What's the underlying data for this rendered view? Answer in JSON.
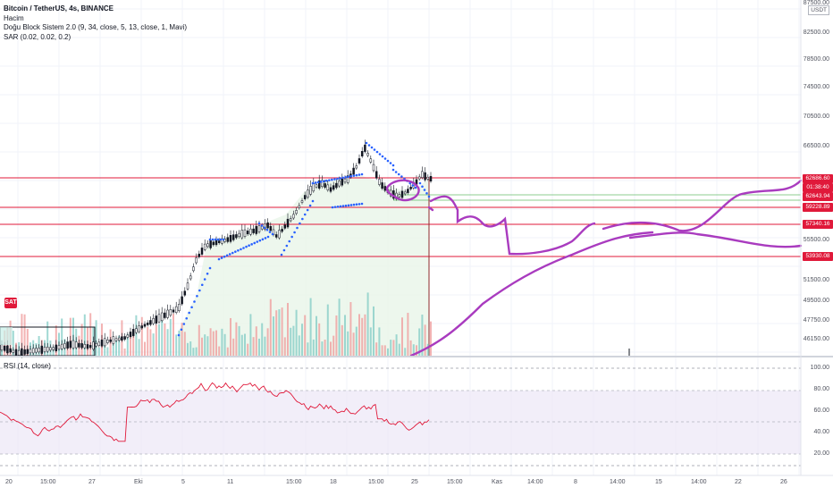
{
  "header": {
    "symbol_line": "Bitcoin / TetherUS, 4s, BINANCE",
    "volume_label": "Hacim",
    "indicator_block": "Doğu Block Sistem 2.0  (9, 34, close, 5, 13, close, 1, Mavi)",
    "indicator_sar": "SAR (0.02, 0.02, 0.2)"
  },
  "rsi_legend": "RSI (14, close)",
  "signal_badge": "SAT",
  "currency_button": "USDT",
  "price_scale": {
    "labels": [
      "87500.00",
      "82500.00",
      "78500.00",
      "74500.00",
      "70500.00",
      "66500.00",
      "55500.00",
      "51500.00",
      "49500.00",
      "47750.00",
      "46150.00"
    ],
    "tags": [
      {
        "text": "62686.60",
        "color": "#e0193a"
      },
      {
        "text": "01:38:40",
        "color": "#e0193a"
      },
      {
        "text": "62643.94",
        "color": "#e0193a"
      },
      {
        "text": "59228.89",
        "color": "#e0193a"
      },
      {
        "text": "57340.16",
        "color": "#e0193a"
      },
      {
        "text": "53930.08",
        "color": "#e0193a"
      }
    ]
  },
  "rsi_scale": [
    "100.00",
    "80.00",
    "60.00",
    "40.00",
    "20.00"
  ],
  "time_axis": [
    "20",
    "15:00",
    "27",
    "Eki",
    "5",
    "11",
    "15:00",
    "18",
    "15:00",
    "25",
    "15:00",
    "Kas",
    "14:00",
    "8",
    "14:00",
    "15",
    "14:00",
    "22",
    "26"
  ],
  "colors": {
    "support_lines": "#e0193a",
    "sar_dots": "#2962ff",
    "drawing": "#a93bbf",
    "rsi_line": "#e0193a",
    "rsi_band": "#ede7f6"
  }
}
